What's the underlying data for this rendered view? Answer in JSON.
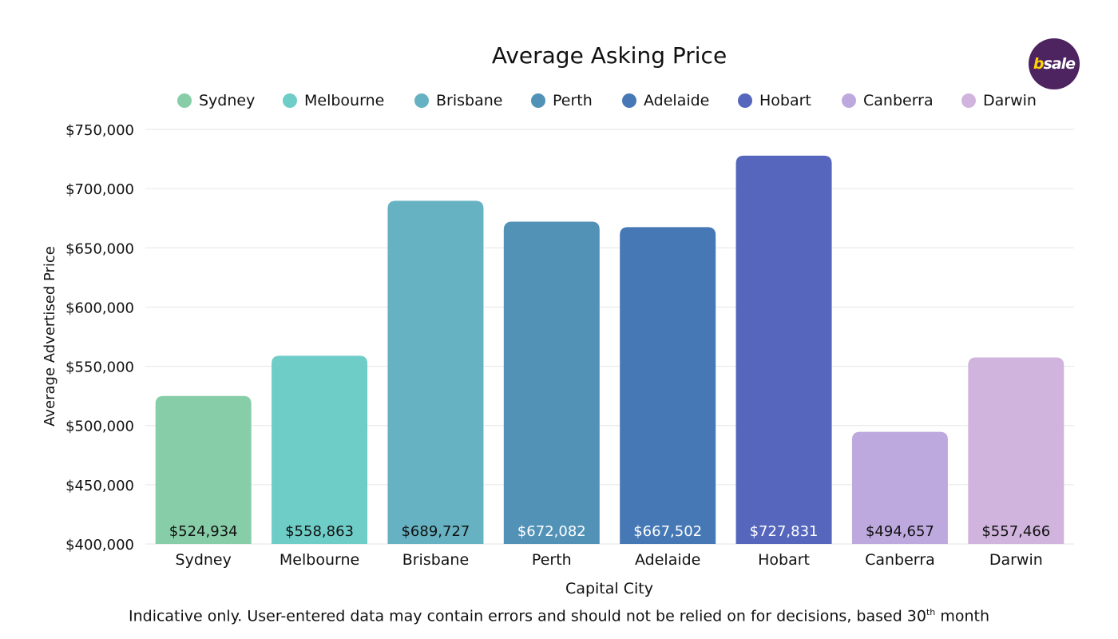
{
  "logo": {
    "text": "bsale",
    "colors": {
      "background": "#4d2360",
      "b": "#ffd400"
    }
  },
  "footnote": {
    "text": "Indicative only. User-entered data may contain errors and should not be relied on for decisions, based 30",
    "sup": "th",
    "suffix": " month"
  },
  "chart_data": {
    "type": "bar",
    "title": "Average Asking Price",
    "xlabel": "Capital City",
    "ylabel": "Average Advertised Price",
    "ylim": [
      400000,
      750000
    ],
    "yticks": [
      400000,
      450000,
      500000,
      550000,
      600000,
      650000,
      700000,
      750000
    ],
    "ytick_labels": [
      "$400,000",
      "$450,000",
      "$500,000",
      "$550,000",
      "$600,000",
      "$650,000",
      "$700,000",
      "$750,000"
    ],
    "grid": true,
    "legend": "top",
    "categories": [
      "Sydney",
      "Melbourne",
      "Brisbane",
      "Perth",
      "Adelaide",
      "Hobart",
      "Canberra",
      "Darwin"
    ],
    "values": [
      524934,
      558863,
      689727,
      672082,
      667502,
      727831,
      494657,
      557466
    ],
    "data_labels": [
      "$524,934",
      "$558,863",
      "$689,727",
      "$672,082",
      "$667,502",
      "$727,831",
      "$494,657",
      "$557,466"
    ],
    "colors": [
      "#87cda8",
      "#6fcdc8",
      "#67b2c2",
      "#5192b6",
      "#4578b5",
      "#5566bc",
      "#bea9df",
      "#d0b4dd"
    ],
    "label_colors": [
      "#111111",
      "#111111",
      "#111111",
      "#ffffff",
      "#ffffff",
      "#ffffff",
      "#111111",
      "#111111"
    ]
  }
}
